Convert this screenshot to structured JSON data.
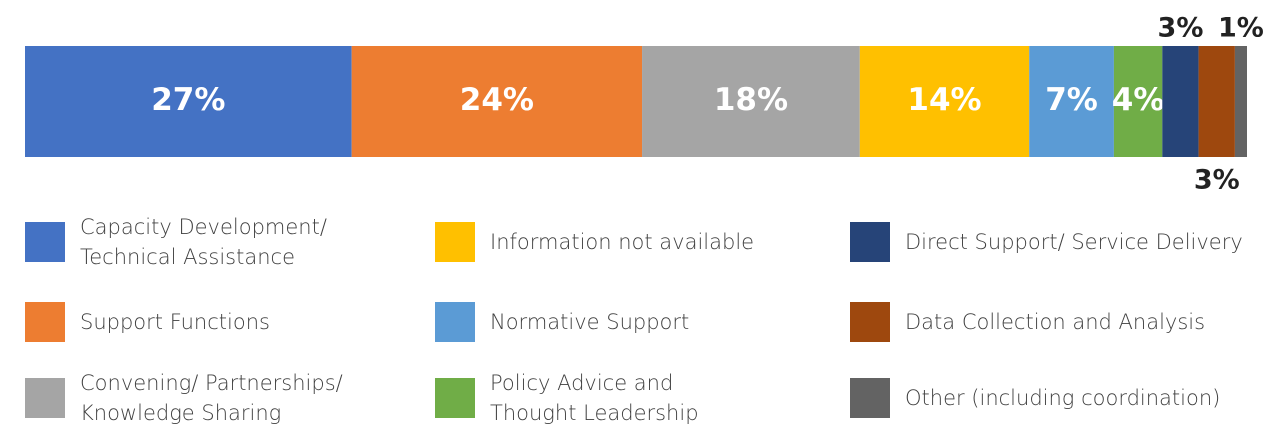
{
  "chart_data": {
    "type": "stacked-bar-100",
    "series": [
      {
        "name": "Capacity Development/ Technical Assistance",
        "color": "#4472c4",
        "values": [
          27
        ],
        "value_labels": [
          "27%"
        ]
      },
      {
        "name": "Support Functions",
        "color": "#ed7d31",
        "values": [
          24
        ],
        "value_labels": [
          "24%"
        ]
      },
      {
        "name": "Convening/ Partnerships/ Knowledge Sharing",
        "color": "#a5a5a5",
        "values": [
          18
        ],
        "value_labels": [
          "18%"
        ]
      },
      {
        "name": "Information not available",
        "color": "#ffc000",
        "values": [
          14
        ],
        "value_labels": [
          "14%"
        ]
      },
      {
        "name": "Normative Support",
        "color": "#5b9bd5",
        "values": [
          7
        ],
        "value_labels": [
          "7%"
        ]
      },
      {
        "name": "Policy Advice and Thought Leadership",
        "color": "#70ad47",
        "values": [
          4
        ],
        "value_labels": [
          "4%"
        ]
      },
      {
        "name": "Direct Support/ Service Delivery",
        "color": "#264478",
        "values": [
          3
        ],
        "value_labels": [
          "3%"
        ]
      },
      {
        "name": "Data Collection and Analysis",
        "color": "#9e480e",
        "values": [
          3
        ],
        "value_labels": [
          "3%"
        ]
      },
      {
        "name": "Other (including coordination)",
        "color": "#636363",
        "values": [
          1
        ],
        "value_labels": [
          "1%"
        ]
      }
    ]
  }
}
